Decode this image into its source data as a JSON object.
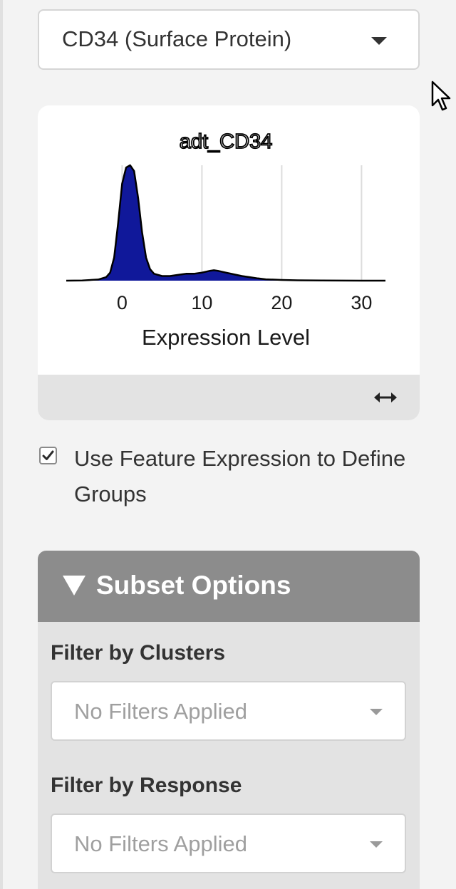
{
  "feature_selector": {
    "selected": "CD34 (Surface Protein)"
  },
  "plot": {
    "resize_icon": "horizontal-resize-icon"
  },
  "chart_data": {
    "type": "area",
    "title": "adt_CD34",
    "xlabel": "Expression Level",
    "ylabel": "",
    "x_ticks": [
      0,
      10,
      20,
      30
    ],
    "tick_labels": [
      "0",
      "10",
      "20",
      "30"
    ],
    "xlim": [
      -7,
      33
    ],
    "ylim": [
      0,
      1
    ],
    "grid_vertical": true,
    "fill_color": "#10189a",
    "line_color": "#000000",
    "series": [
      {
        "x": [
          -7,
          -5,
          -3,
          -2,
          -1.5,
          -1,
          -0.5,
          0,
          0.5,
          1,
          1.5,
          2,
          2.5,
          3,
          3.5,
          4,
          5,
          6,
          7,
          8,
          9,
          10,
          11,
          11.5,
          12,
          13,
          14,
          15,
          16,
          17,
          18,
          20,
          22,
          25,
          30,
          33
        ],
        "values": [
          0,
          0.002,
          0.01,
          0.03,
          0.07,
          0.2,
          0.5,
          0.84,
          0.98,
          1.0,
          0.95,
          0.72,
          0.42,
          0.2,
          0.1,
          0.06,
          0.04,
          0.04,
          0.05,
          0.06,
          0.06,
          0.07,
          0.085,
          0.09,
          0.085,
          0.07,
          0.055,
          0.04,
          0.03,
          0.02,
          0.012,
          0.006,
          0.003,
          0.001,
          0,
          0
        ]
      }
    ]
  },
  "checkbox": {
    "checked": true,
    "label": "Use Feature Expression to Define Groups"
  },
  "subset_options": {
    "title": "Subset Options",
    "filters": [
      {
        "label": "Filter by Clusters",
        "placeholder": "No Filters Applied"
      },
      {
        "label": "Filter by Response",
        "placeholder": "No Filters Applied"
      }
    ]
  }
}
